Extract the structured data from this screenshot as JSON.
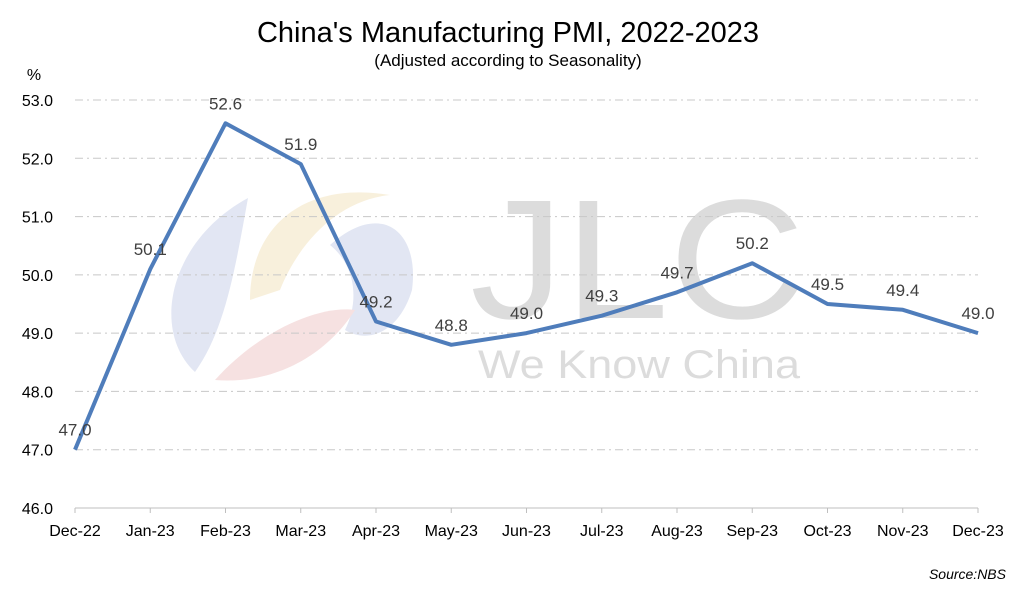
{
  "chart_data": {
    "type": "line",
    "title": "China's Manufacturing PMI, 2022-2023",
    "subtitle": "(Adjusted according to Seasonality)",
    "ylabel": "%",
    "xlabel": "",
    "ylim": [
      46.0,
      53.0
    ],
    "ytick_labels": [
      "46.0",
      "47.0",
      "48.0",
      "49.0",
      "50.0",
      "51.0",
      "52.0",
      "53.0"
    ],
    "categories": [
      "Dec-22",
      "Jan-23",
      "Feb-23",
      "Mar-23",
      "Apr-23",
      "May-23",
      "Jun-23",
      "Jul-23",
      "Aug-23",
      "Sep-23",
      "Oct-23",
      "Nov-23",
      "Dec-23"
    ],
    "series": [
      {
        "name": "Manufacturing PMI",
        "values": [
          47.0,
          50.1,
          52.6,
          51.9,
          49.2,
          48.8,
          49.0,
          49.3,
          49.7,
          50.2,
          49.5,
          49.4,
          49.0
        ],
        "labels": [
          "47.0",
          "50.1",
          "52.6",
          "51.9",
          "49.2",
          "48.8",
          "49.0",
          "49.3",
          "49.7",
          "50.2",
          "49.5",
          "49.4",
          "49.0"
        ]
      }
    ],
    "grid": "horizontal-dashed",
    "line_color": "#4f7dbb",
    "source": "Source:NBS"
  },
  "watermark": {
    "brand": "JLC",
    "tagline": "We Know China"
  }
}
